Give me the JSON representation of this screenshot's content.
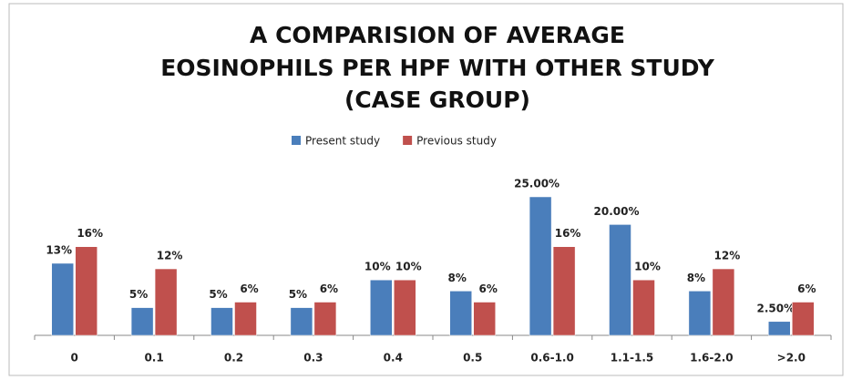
{
  "chart_data": {
    "type": "bar",
    "title": [
      "A COMPARISION OF AVERAGE",
      "EOSINOPHILS PER HPF WITH OTHER STUDY",
      "(CASE GROUP)"
    ],
    "categories": [
      "0",
      "0.1",
      "0.2",
      "0.3",
      "0.4",
      "0.5",
      "0.6-1.0",
      "1.1-1.5",
      "1.6-2.0",
      ">2.0"
    ],
    "series": [
      {
        "name": "Present study",
        "color": "#4a7ebb",
        "values": [
          13,
          5,
          5,
          5,
          10,
          8,
          25,
          20,
          8,
          2.5
        ],
        "value_labels": [
          "13%",
          "5%",
          "5%",
          "5%",
          "10%",
          "8%",
          "25.00%",
          "20.00%",
          "8%",
          "2.50%"
        ]
      },
      {
        "name": "Previous study",
        "color": "#c0504d",
        "values": [
          16,
          12,
          6,
          6,
          10,
          6,
          16,
          10,
          12,
          6
        ],
        "value_labels": [
          "16%",
          "12%",
          "6%",
          "6%",
          "10%",
          "6%",
          "16%",
          "10%",
          "12%",
          "6%"
        ]
      }
    ],
    "ylim": [
      0,
      25
    ],
    "legend": "top"
  }
}
